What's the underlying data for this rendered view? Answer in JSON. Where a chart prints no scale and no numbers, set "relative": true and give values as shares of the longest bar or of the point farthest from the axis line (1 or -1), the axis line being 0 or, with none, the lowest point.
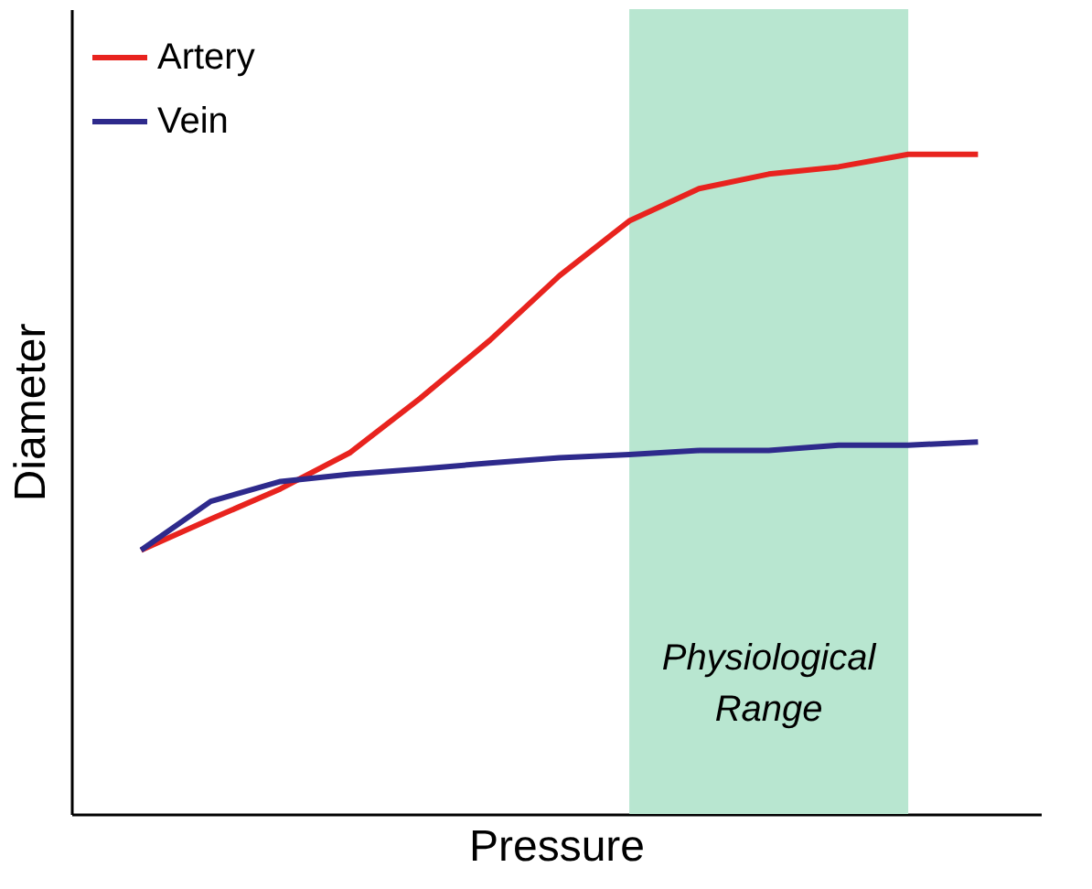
{
  "chart_data": {
    "type": "line",
    "relative": true,
    "xlabel": "Pressure",
    "ylabel": "Diameter",
    "categories": [
      null,
      null,
      null,
      null,
      null,
      null,
      null,
      null,
      null,
      null,
      null,
      null,
      null
    ],
    "series": [
      {
        "name": "Artery",
        "color": "#e8231e",
        "values": [
          0.4,
          0.447,
          0.493,
          0.548,
          0.63,
          0.718,
          0.816,
          0.899,
          0.948,
          0.97,
          0.981,
          1.0,
          1.0
        ]
      },
      {
        "name": "Vein",
        "color": "#2e2a8c",
        "values": [
          0.4,
          0.474,
          0.504,
          0.515,
          0.523,
          0.532,
          0.54,
          0.545,
          0.551,
          0.551,
          0.559,
          0.559,
          0.564
        ]
      }
    ],
    "annotations": [
      "Physiological\nRange"
    ],
    "legend": "top left",
    "grid": false,
    "marker": "none",
    "line_style": "solid",
    "tick_labels": false
  }
}
